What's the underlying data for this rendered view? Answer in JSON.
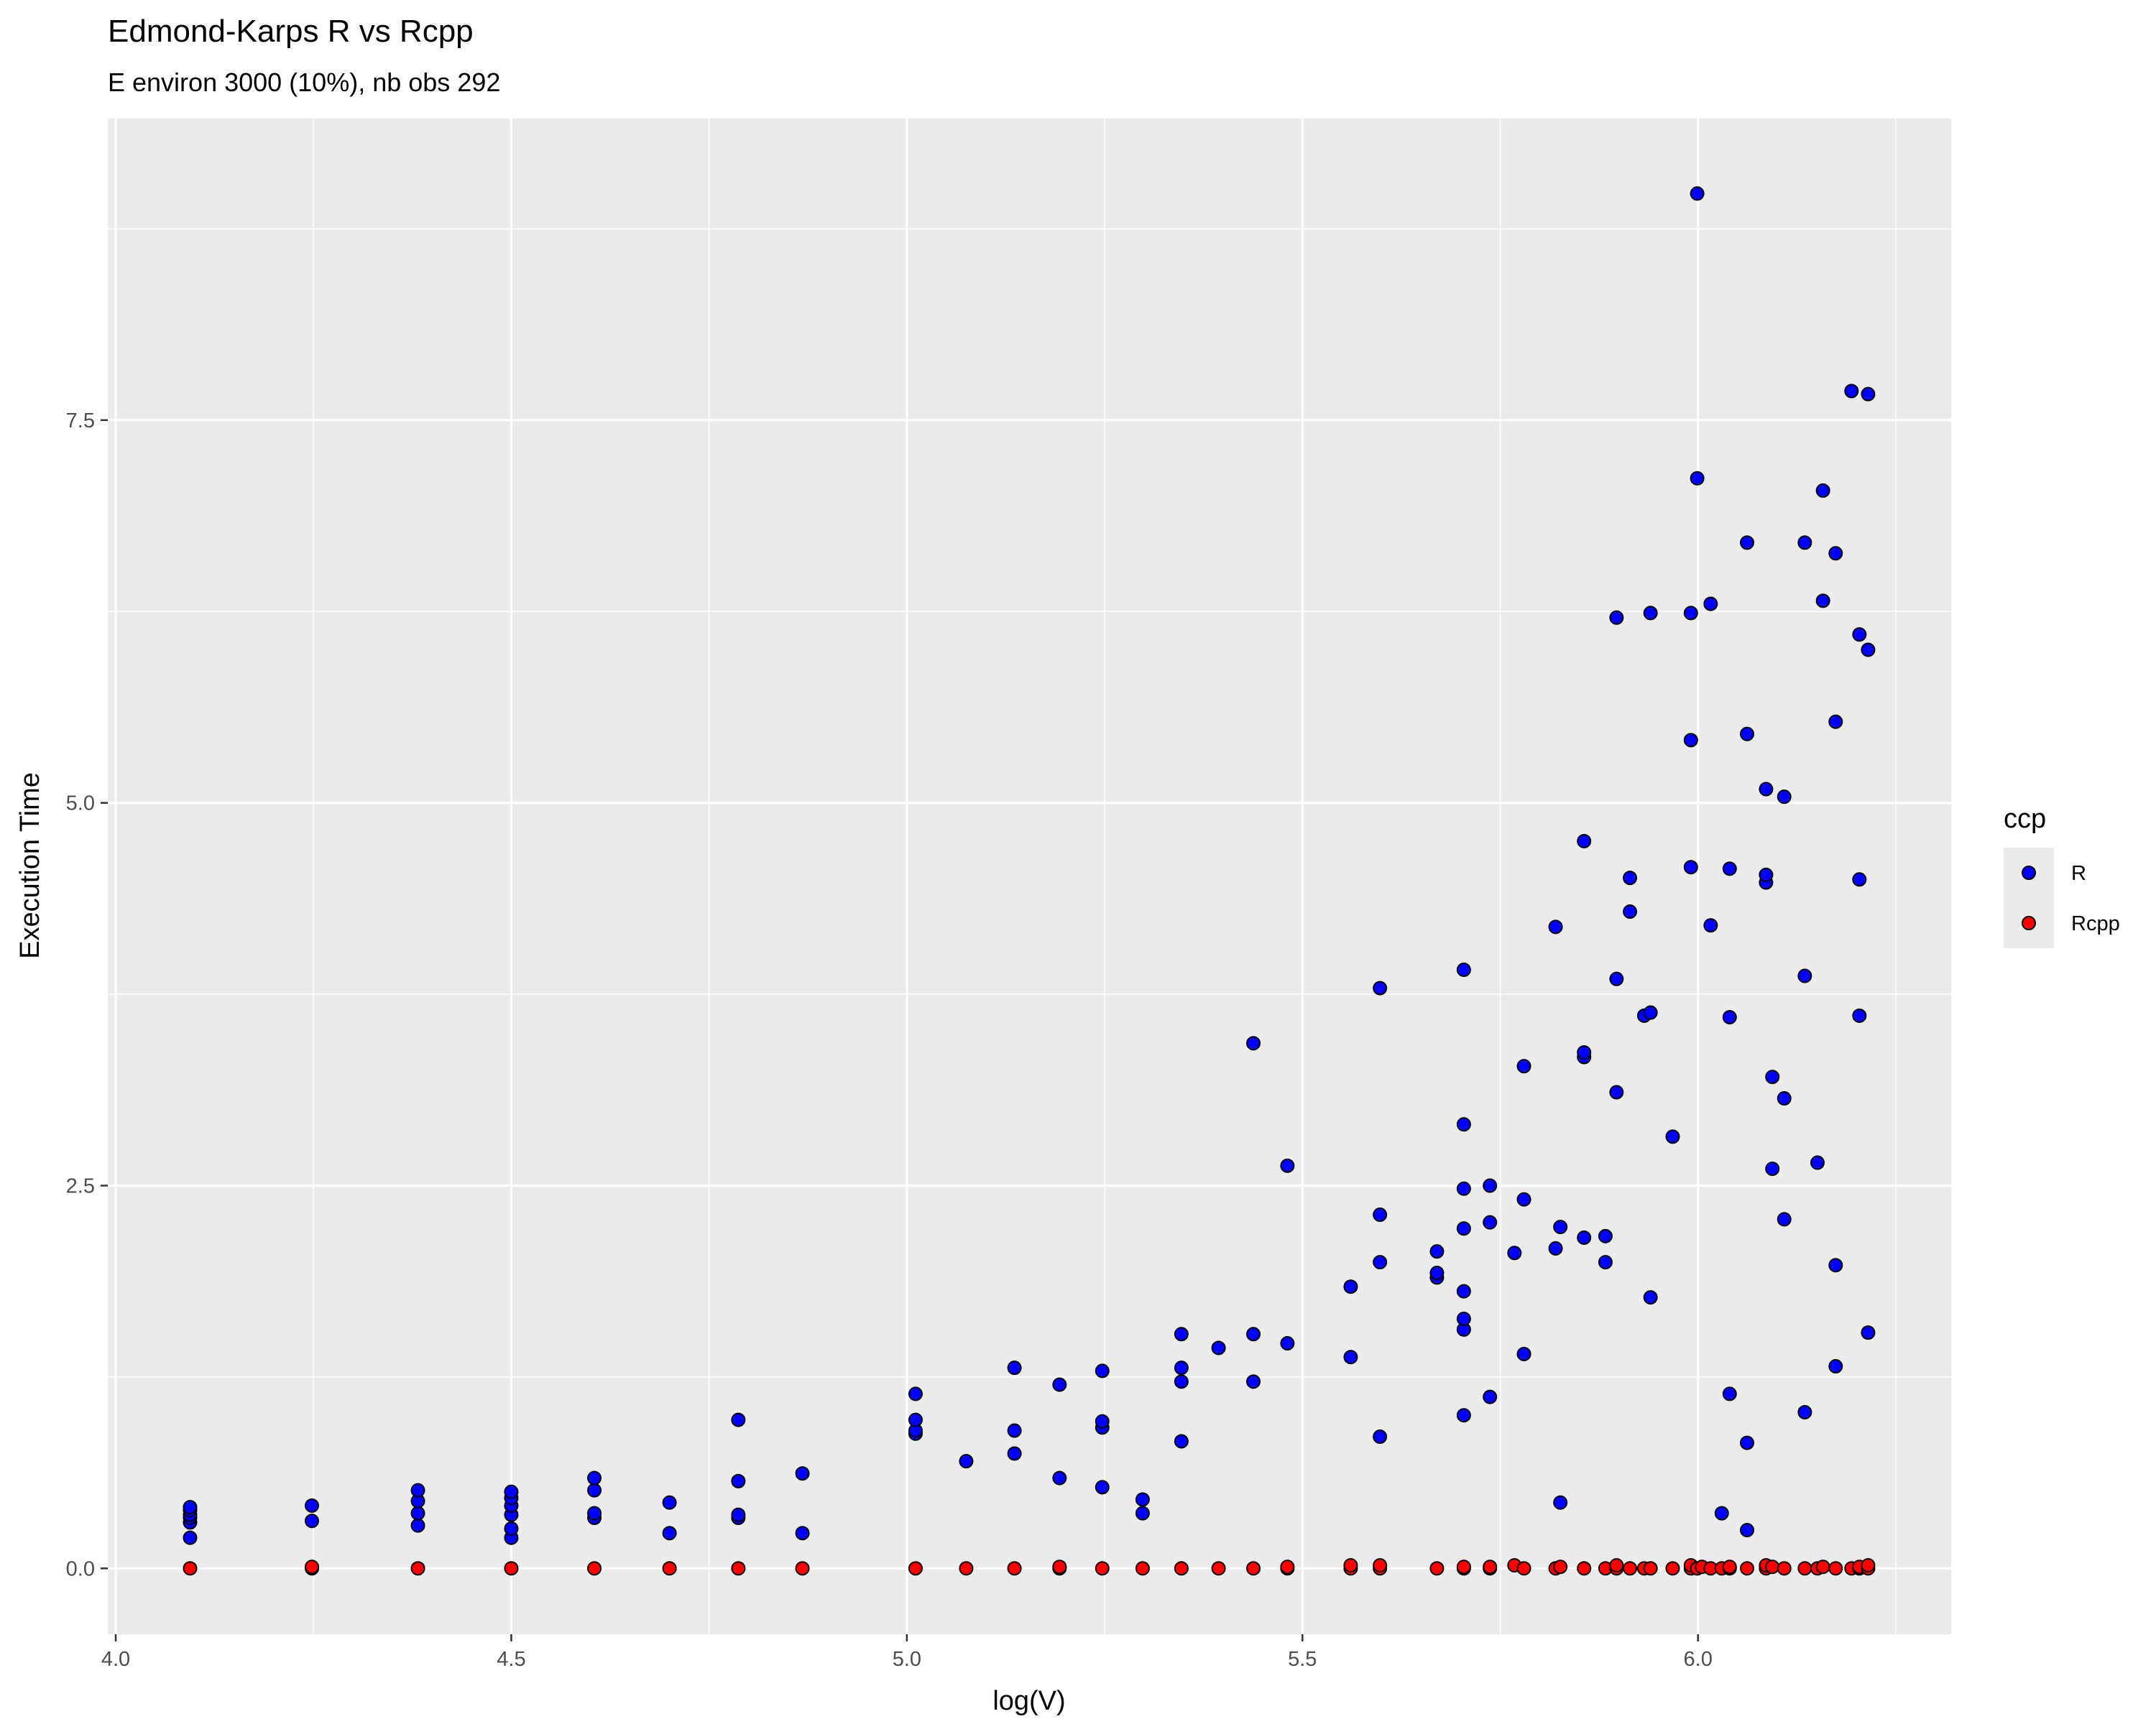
{
  "chart_data": {
    "type": "scatter",
    "title": "Edmond-Karps R vs Rcpp",
    "subtitle": "E environ 3000 (10%), nb obs 292",
    "xlabel": "log(V)",
    "ylabel": "Execution Time",
    "xlim": [
      3.99,
      6.32
    ],
    "ylim": [
      -0.43,
      9.47
    ],
    "x_ticks": [
      4.0,
      4.5,
      5.0,
      5.5,
      6.0
    ],
    "x_tick_labels": [
      "4.0",
      "4.5",
      "5.0",
      "5.5",
      "6.0"
    ],
    "y_ticks": [
      0.0,
      2.5,
      5.0,
      7.5
    ],
    "y_tick_labels": [
      "0.0",
      "2.5",
      "5.0",
      "7.5"
    ],
    "grid": true,
    "legend": {
      "title": "ccp",
      "position": "right"
    },
    "series": [
      {
        "name": "R",
        "color": "#0000ff",
        "points": [
          [
            4.094,
            0.2
          ],
          [
            4.094,
            0.3
          ],
          [
            4.094,
            0.33
          ],
          [
            4.094,
            0.35
          ],
          [
            4.094,
            0.38
          ],
          [
            4.094,
            0.4
          ],
          [
            4.248,
            0.31
          ],
          [
            4.248,
            0.41
          ],
          [
            4.382,
            0.28
          ],
          [
            4.382,
            0.36
          ],
          [
            4.382,
            0.44
          ],
          [
            4.382,
            0.51
          ],
          [
            4.5,
            0.2
          ],
          [
            4.5,
            0.26
          ],
          [
            4.5,
            0.35
          ],
          [
            4.5,
            0.41
          ],
          [
            4.5,
            0.46
          ],
          [
            4.5,
            0.5
          ],
          [
            4.605,
            0.33
          ],
          [
            4.605,
            0.36
          ],
          [
            4.605,
            0.51
          ],
          [
            4.605,
            0.59
          ],
          [
            4.7,
            0.23
          ],
          [
            4.7,
            0.43
          ],
          [
            4.787,
            0.33
          ],
          [
            4.787,
            0.35
          ],
          [
            4.787,
            0.57
          ],
          [
            4.787,
            0.97
          ],
          [
            4.868,
            0.23
          ],
          [
            4.868,
            0.62
          ],
          [
            5.011,
            0.88
          ],
          [
            5.011,
            0.9
          ],
          [
            5.011,
            0.97
          ],
          [
            5.011,
            1.14
          ],
          [
            5.075,
            0.7
          ],
          [
            5.136,
            0.75
          ],
          [
            5.136,
            0.9
          ],
          [
            5.136,
            1.31
          ],
          [
            5.193,
            0.59
          ],
          [
            5.193,
            1.2
          ],
          [
            5.247,
            0.53
          ],
          [
            5.247,
            0.92
          ],
          [
            5.247,
            0.96
          ],
          [
            5.247,
            1.29
          ],
          [
            5.298,
            0.36
          ],
          [
            5.298,
            0.45
          ],
          [
            5.347,
            0.83
          ],
          [
            5.347,
            1.22
          ],
          [
            5.347,
            1.31
          ],
          [
            5.347,
            1.53
          ],
          [
            5.394,
            1.44
          ],
          [
            5.438,
            1.22
          ],
          [
            5.438,
            1.53
          ],
          [
            5.438,
            3.43
          ],
          [
            5.481,
            1.47
          ],
          [
            5.481,
            2.63
          ],
          [
            5.561,
            1.38
          ],
          [
            5.561,
            1.84
          ],
          [
            5.598,
            0.86
          ],
          [
            5.598,
            2.0
          ],
          [
            5.598,
            2.31
          ],
          [
            5.598,
            3.79
          ],
          [
            5.67,
            1.9
          ],
          [
            5.67,
            1.93
          ],
          [
            5.67,
            2.07
          ],
          [
            5.704,
            1.0
          ],
          [
            5.704,
            1.56
          ],
          [
            5.704,
            1.63
          ],
          [
            5.704,
            1.81
          ],
          [
            5.704,
            2.22
          ],
          [
            5.704,
            2.48
          ],
          [
            5.704,
            2.9
          ],
          [
            5.704,
            3.91
          ],
          [
            5.737,
            1.12
          ],
          [
            5.737,
            2.26
          ],
          [
            5.737,
            2.5
          ],
          [
            5.768,
            2.06
          ],
          [
            5.78,
            1.4
          ],
          [
            5.78,
            2.41
          ],
          [
            5.78,
            3.28
          ],
          [
            5.82,
            2.09
          ],
          [
            5.82,
            4.19
          ],
          [
            5.826,
            0.43
          ],
          [
            5.826,
            2.23
          ],
          [
            5.856,
            2.16
          ],
          [
            5.856,
            3.34
          ],
          [
            5.856,
            3.37
          ],
          [
            5.856,
            4.75
          ],
          [
            5.883,
            2.0
          ],
          [
            5.883,
            2.17
          ],
          [
            5.897,
            3.11
          ],
          [
            5.897,
            3.85
          ],
          [
            5.897,
            6.21
          ],
          [
            5.914,
            4.29
          ],
          [
            5.914,
            4.51
          ],
          [
            5.932,
            3.61
          ],
          [
            5.94,
            1.77
          ],
          [
            5.94,
            3.63
          ],
          [
            5.94,
            6.24
          ],
          [
            5.968,
            2.82
          ],
          [
            5.991,
            4.58
          ],
          [
            5.991,
            5.41
          ],
          [
            5.991,
            6.24
          ],
          [
            5.999,
            7.12
          ],
          [
            5.999,
            8.98
          ],
          [
            6.016,
            4.2
          ],
          [
            6.016,
            6.3
          ],
          [
            6.03,
            0.36
          ],
          [
            6.04,
            1.14
          ],
          [
            6.04,
            3.6
          ],
          [
            6.04,
            4.57
          ],
          [
            6.062,
            0.25
          ],
          [
            6.062,
            0.82
          ],
          [
            6.062,
            5.45
          ],
          [
            6.062,
            6.7
          ],
          [
            6.086,
            4.48
          ],
          [
            6.086,
            4.53
          ],
          [
            6.086,
            5.09
          ],
          [
            6.094,
            2.61
          ],
          [
            6.094,
            3.21
          ],
          [
            6.109,
            3.07
          ],
          [
            6.109,
            5.04
          ],
          [
            6.109,
            2.28
          ],
          [
            6.135,
            1.02
          ],
          [
            6.135,
            3.87
          ],
          [
            6.135,
            6.7
          ],
          [
            6.151,
            2.65
          ],
          [
            6.158,
            6.32
          ],
          [
            6.158,
            7.04
          ],
          [
            6.174,
            1.32
          ],
          [
            6.174,
            1.98
          ],
          [
            6.174,
            5.53
          ],
          [
            6.174,
            6.63
          ],
          [
            6.194,
            7.69
          ],
          [
            6.204,
            3.61
          ],
          [
            6.204,
            4.5
          ],
          [
            6.204,
            6.1
          ],
          [
            6.215,
            1.54
          ],
          [
            6.215,
            6.0
          ],
          [
            6.215,
            7.67
          ]
        ]
      },
      {
        "name": "Rcpp",
        "color": "#ff0000",
        "points": [
          [
            4.094,
            0.0
          ],
          [
            4.248,
            0.0
          ],
          [
            4.248,
            0.01
          ],
          [
            4.382,
            0.0
          ],
          [
            4.5,
            0.0
          ],
          [
            4.605,
            0.0
          ],
          [
            4.7,
            0.0
          ],
          [
            4.787,
            0.0
          ],
          [
            4.868,
            0.0
          ],
          [
            5.011,
            0.0
          ],
          [
            5.075,
            0.0
          ],
          [
            5.136,
            0.0
          ],
          [
            5.193,
            0.0
          ],
          [
            5.193,
            0.01
          ],
          [
            5.247,
            0.0
          ],
          [
            5.298,
            0.0
          ],
          [
            5.347,
            0.0
          ],
          [
            5.394,
            0.0
          ],
          [
            5.438,
            0.0
          ],
          [
            5.481,
            0.0
          ],
          [
            5.481,
            0.01
          ],
          [
            5.561,
            0.0
          ],
          [
            5.561,
            0.02
          ],
          [
            5.598,
            0.0
          ],
          [
            5.598,
            0.02
          ],
          [
            5.67,
            0.0
          ],
          [
            5.704,
            0.0
          ],
          [
            5.704,
            0.01
          ],
          [
            5.737,
            0.0
          ],
          [
            5.737,
            0.01
          ],
          [
            5.768,
            0.02
          ],
          [
            5.78,
            0.0
          ],
          [
            5.82,
            0.0
          ],
          [
            5.826,
            0.01
          ],
          [
            5.856,
            0.0
          ],
          [
            5.883,
            0.0
          ],
          [
            5.897,
            0.0
          ],
          [
            5.897,
            0.02
          ],
          [
            5.914,
            0.0
          ],
          [
            5.932,
            0.0
          ],
          [
            5.94,
            0.0
          ],
          [
            5.968,
            0.0
          ],
          [
            5.991,
            0.0
          ],
          [
            5.991,
            0.02
          ],
          [
            5.999,
            0.0
          ],
          [
            6.005,
            0.01
          ],
          [
            6.016,
            0.0
          ],
          [
            6.03,
            0.0
          ],
          [
            6.04,
            0.0
          ],
          [
            6.04,
            0.01
          ],
          [
            6.062,
            0.0
          ],
          [
            6.086,
            0.0
          ],
          [
            6.086,
            0.02
          ],
          [
            6.094,
            0.01
          ],
          [
            6.109,
            0.0
          ],
          [
            6.135,
            0.0
          ],
          [
            6.151,
            0.0
          ],
          [
            6.158,
            0.01
          ],
          [
            6.174,
            0.0
          ],
          [
            6.194,
            0.0
          ],
          [
            6.204,
            0.0
          ],
          [
            6.204,
            0.01
          ],
          [
            6.215,
            0.0
          ],
          [
            6.215,
            0.02
          ]
        ]
      }
    ]
  }
}
